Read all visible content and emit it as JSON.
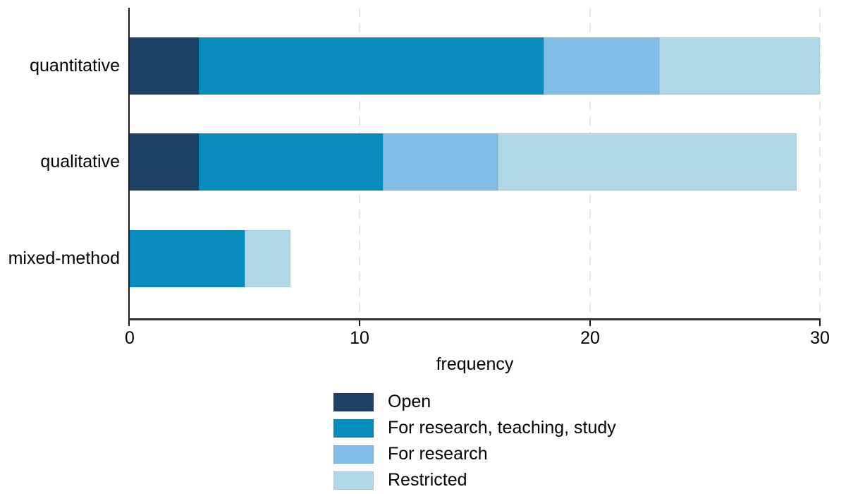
{
  "chart_data": {
    "type": "bar",
    "orientation": "horizontal",
    "stacked": true,
    "title": "",
    "xlabel": "frequency",
    "ylabel": "",
    "xlim": [
      0,
      30
    ],
    "x_ticks": [
      "0",
      "10",
      "20",
      "30"
    ],
    "x_tick_values": [
      0,
      10,
      20,
      30
    ],
    "grid": "vertical-dashed-at-ticks",
    "legend_position": "bottom",
    "categories": [
      "quantitative",
      "qualitative",
      "mixed-method"
    ],
    "series": [
      {
        "name": "Open",
        "color": "#1d4266",
        "values": [
          3,
          3,
          0
        ]
      },
      {
        "name": "For research, teaching, study",
        "color": "#0a8cbf",
        "values": [
          15,
          8,
          5
        ]
      },
      {
        "name": "For research",
        "color": "#82bde8",
        "values": [
          5,
          5,
          0
        ]
      },
      {
        "name": "Restricted",
        "color": "#b0d8e7",
        "values": [
          7,
          13,
          2
        ]
      }
    ],
    "category_totals": [
      30,
      29,
      7
    ]
  },
  "colors": {
    "background": "#ffffff",
    "axis": "#1a1a1a",
    "gridline": "#e7e7e7",
    "text": "#000000"
  }
}
